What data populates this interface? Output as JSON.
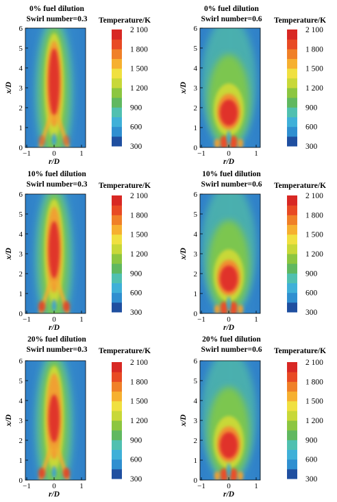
{
  "colorbar": {
    "title": "Temperature/K",
    "ticks": [
      "2 100",
      "1 800",
      "1 500",
      "1 200",
      "900",
      "600",
      "300"
    ],
    "min": 300,
    "max": 2100,
    "colors": [
      "#1f4fa0",
      "#2f8fd0",
      "#3fb0d8",
      "#50c0b0",
      "#60b860",
      "#8cc640",
      "#c8d838",
      "#f0e040",
      "#f6b030",
      "#f08028",
      "#e84a24",
      "#d82824"
    ]
  },
  "axes": {
    "x_label": "r/D",
    "y_label": "x/D",
    "x_ticks": [
      "-1",
      "0",
      "1"
    ],
    "y_ticks": [
      "0",
      "1",
      "2",
      "3",
      "4",
      "5",
      "6"
    ]
  },
  "panels": [
    {
      "title1": "0% fuel dilution",
      "title2": "Swirl number=0.3",
      "swirl": 0.3,
      "dilution": 0
    },
    {
      "title1": "0% fuel dilution",
      "title2": "Swirl number=0.6",
      "swirl": 0.6,
      "dilution": 0
    },
    {
      "title1": "10% fuel dilution",
      "title2": "Swirl number=0.3",
      "swirl": 0.3,
      "dilution": 10
    },
    {
      "title1": "10% fuel dilution",
      "title2": "Swirl number=0.6",
      "swirl": 0.6,
      "dilution": 10
    },
    {
      "title1": "20% fuel dilution",
      "title2": "Swirl number=0.3",
      "swirl": 0.3,
      "dilution": 20
    },
    {
      "title1": "20% fuel dilution",
      "title2": "Swirl number=0.6",
      "swirl": 0.6,
      "dilution": 20
    }
  ]
}
